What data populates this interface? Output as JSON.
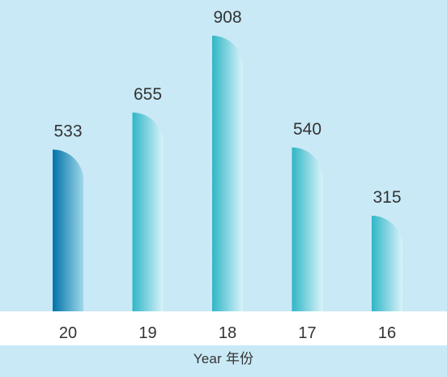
{
  "chart_data": {
    "type": "bar",
    "categories": [
      "20",
      "19",
      "18",
      "17",
      "16"
    ],
    "values": [
      533,
      655,
      908,
      540,
      315
    ],
    "data_labels": [
      "533",
      "655",
      "908",
      "540",
      "315"
    ],
    "title": "",
    "xlabel": "Year 年份",
    "ylabel": "",
    "ylim": [
      0,
      1000
    ],
    "grid": false,
    "legend": "none",
    "highlight_index": 0
  },
  "colors": {
    "background": "#c9e9f6",
    "axis_band": "#ffffff",
    "bar_highlight_dark": "#0073a8",
    "bar_highlight_light": "#9fd8ea",
    "bar_dark": "#2fb6c6",
    "bar_light": "#d9f2fa",
    "text": "#333333"
  }
}
